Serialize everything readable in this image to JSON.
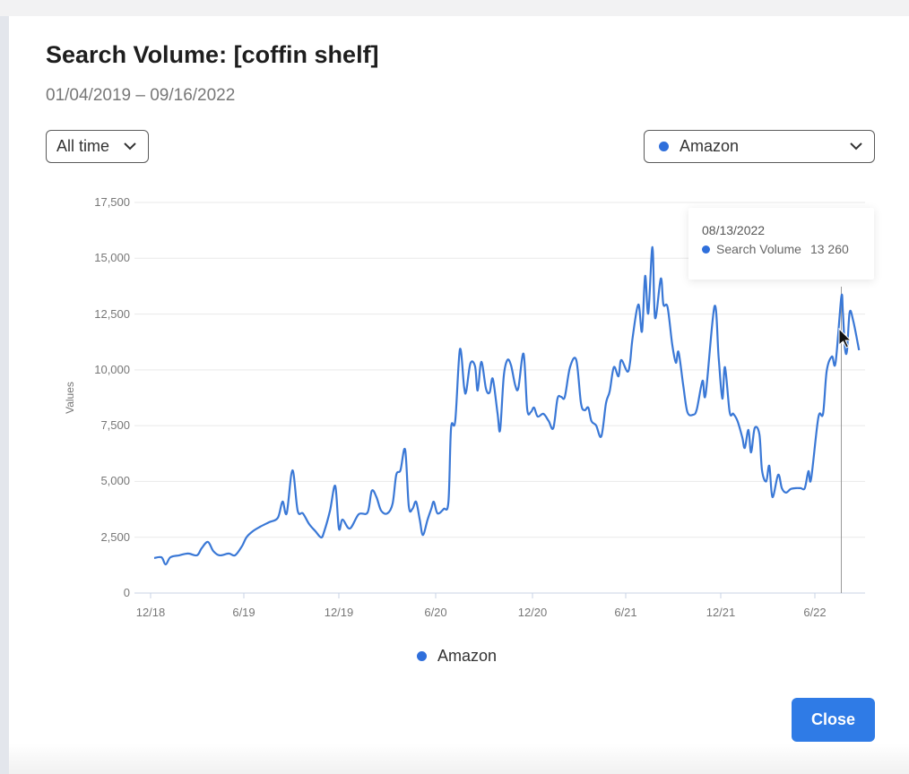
{
  "modal": {
    "title": "Search Volume: [coffin shelf]",
    "date_range": "01/04/2019 – 09/16/2022",
    "time_dropdown": {
      "selected": "All time"
    },
    "source_dropdown": {
      "selected": "Amazon",
      "dot_color": "#2f6fdb"
    },
    "close_label": "Close",
    "close_color": "#2f7be6"
  },
  "tooltip": {
    "date": "08/13/2022",
    "series": "Search Volume",
    "value": "13 260"
  },
  "chart_data": {
    "type": "line",
    "title": "",
    "xlabel": "",
    "ylabel": "Values",
    "ylim": [
      0,
      17500
    ],
    "yticks": [
      "0",
      "2,500",
      "5,000",
      "7,500",
      "10,000",
      "12,500",
      "15,000",
      "17,500"
    ],
    "xticks": [
      "12/18",
      "6/19",
      "12/19",
      "6/20",
      "12/20",
      "6/21",
      "12/21",
      "6/22"
    ],
    "grid": true,
    "legend": {
      "position": "bottom",
      "entries": [
        "Amazon"
      ]
    },
    "series": [
      {
        "name": "Amazon",
        "color": "#3a78d6",
        "x": [
          "2019-01-04",
          "2019-01-18",
          "2019-01-26",
          "2019-02-04",
          "2019-02-21",
          "2019-03-10",
          "2019-03-27",
          "2019-04-05",
          "2019-04-17",
          "2019-04-27",
          "2019-05-09",
          "2019-05-27",
          "2019-06-08",
          "2019-06-21",
          "2019-06-30",
          "2019-07-12",
          "2019-07-26",
          "2019-08-12",
          "2019-08-29",
          "2019-09-07",
          "2019-09-15",
          "2019-09-26",
          "2019-10-06",
          "2019-10-16",
          "2019-10-28",
          "2019-11-09",
          "2019-11-20",
          "2019-11-26",
          "2019-12-07",
          "2019-12-17",
          "2019-12-24",
          "2019-12-31",
          "2020-01-14",
          "2020-01-31",
          "2020-02-17",
          "2020-02-25",
          "2020-03-05",
          "2020-03-14",
          "2020-03-26",
          "2020-04-05",
          "2020-04-12",
          "2020-04-20",
          "2020-04-29",
          "2020-05-06",
          "2020-05-13",
          "2020-05-20",
          "2020-05-27",
          "2020-06-02",
          "2020-06-11",
          "2020-06-18",
          "2020-06-23",
          "2020-06-30",
          "2020-07-12",
          "2020-07-21",
          "2020-07-26",
          "2020-08-03",
          "2020-08-12",
          "2020-08-20",
          "2020-08-24",
          "2020-09-01",
          "2020-09-10",
          "2020-09-15",
          "2020-09-22",
          "2020-10-01",
          "2020-10-08",
          "2020-10-14",
          "2020-10-23",
          "2020-10-28",
          "2020-11-04",
          "2020-11-11",
          "2020-11-18",
          "2020-11-26",
          "2020-12-02",
          "2020-12-12",
          "2020-12-19",
          "2020-12-26",
          "2021-01-01",
          "2021-01-08",
          "2021-01-19",
          "2021-01-29",
          "2021-02-07",
          "2021-02-15",
          "2021-02-22",
          "2021-03-01",
          "2021-03-11",
          "2021-03-23",
          "2021-04-01",
          "2021-04-08",
          "2021-04-15",
          "2021-04-21",
          "2021-04-30",
          "2021-05-10",
          "2021-05-19",
          "2021-05-26",
          "2021-06-03",
          "2021-06-12",
          "2021-06-17",
          "2021-06-29",
          "2021-07-04",
          "2021-07-09",
          "2021-07-20",
          "2021-07-27",
          "2021-08-02",
          "2021-08-08",
          "2021-08-16",
          "2021-08-21",
          "2021-09-01",
          "2021-09-06",
          "2021-09-14",
          "2021-09-23",
          "2021-09-30",
          "2021-10-05",
          "2021-10-14",
          "2021-10-22",
          "2021-11-02",
          "2021-11-09",
          "2021-11-20",
          "2021-11-26",
          "2021-12-13",
          "2021-12-21",
          "2021-12-28",
          "2022-01-02",
          "2022-01-11",
          "2022-01-18",
          "2022-01-26",
          "2022-02-04",
          "2022-02-09",
          "2022-02-16",
          "2022-02-21",
          "2022-02-28",
          "2022-03-09",
          "2022-03-14",
          "2022-03-22",
          "2022-03-28",
          "2022-04-03",
          "2022-04-14",
          "2022-04-21",
          "2022-04-29",
          "2022-05-08",
          "2022-05-18",
          "2022-05-27",
          "2022-06-04",
          "2022-06-11",
          "2022-06-16",
          "2022-06-30",
          "2022-07-09",
          "2022-07-16",
          "2022-07-26",
          "2022-08-02",
          "2022-08-13",
          "2022-08-16",
          "2022-08-20",
          "2022-08-24",
          "2022-08-29",
          "2022-09-05",
          "2022-09-16"
        ],
        "values": [
          1570,
          1600,
          1280,
          1600,
          1690,
          1770,
          1690,
          2010,
          2290,
          1890,
          1690,
          1770,
          1690,
          2090,
          2500,
          2770,
          2970,
          3170,
          3370,
          4100,
          3570,
          5500,
          3690,
          3570,
          3090,
          2770,
          2490,
          2770,
          3690,
          4800,
          2890,
          3290,
          2890,
          3530,
          3610,
          4580,
          4300,
          3690,
          3570,
          4010,
          5300,
          5500,
          6420,
          3890,
          3770,
          4090,
          3290,
          2600,
          3290,
          3770,
          4090,
          3570,
          3770,
          4090,
          7390,
          7710,
          10920,
          9230,
          9030,
          10280,
          10160,
          9070,
          10360,
          9150,
          8990,
          9600,
          8070,
          7300,
          9710,
          10440,
          10200,
          9310,
          9190,
          10720,
          8230,
          8110,
          8310,
          7910,
          8030,
          7710,
          7390,
          8710,
          8790,
          8790,
          10120,
          10440,
          8510,
          8190,
          8310,
          7710,
          7510,
          7020,
          8510,
          9030,
          10120,
          9710,
          10440,
          9920,
          10320,
          11440,
          12930,
          11720,
          14210,
          12530,
          15500,
          12330,
          14090,
          12930,
          12810,
          11120,
          10320,
          10800,
          9310,
          8110,
          7990,
          8230,
          9510,
          8910,
          12850,
          10520,
          8710,
          10120,
          8110,
          8030,
          7710,
          6990,
          6500,
          7310,
          6300,
          7390,
          7110,
          5500,
          5000,
          5700,
          4300,
          5300,
          4700,
          4500,
          4660,
          4700,
          4700,
          4700,
          5460,
          5100,
          7870,
          8030,
          9950,
          10600,
          10320,
          13260,
          12580,
          10960,
          10880,
          12580,
          12180,
          10880
        ]
      }
    ],
    "hover": {
      "x": "2022-08-13",
      "value": 13260
    }
  }
}
